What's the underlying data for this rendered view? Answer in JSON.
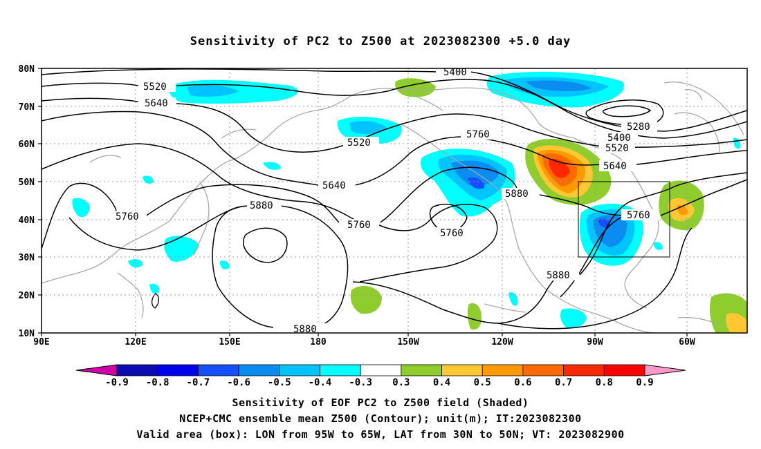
{
  "title": "Sensitivity of PC2 to Z500 at 2023082300 +5.0 day",
  "lat_labels": [
    "80N",
    "70N",
    "60N",
    "50N",
    "40N",
    "30N",
    "20N",
    "10N"
  ],
  "lon_labels": [
    "90E",
    "120E",
    "150E",
    "180",
    "150W",
    "120W",
    "90W",
    "60W"
  ],
  "contour_labels": [
    "5400",
    "5520",
    "5640",
    "5520",
    "5760",
    "5280",
    "5400",
    "5520",
    "5640",
    "5640",
    "5880",
    "5880",
    "5760",
    "5760",
    "5760",
    "5760",
    "5880",
    "5880"
  ],
  "colorbar": {
    "labels": [
      "-0.9",
      "-0.8",
      "-0.7",
      "-0.6",
      "-0.5",
      "-0.4",
      "-0.3",
      "0.3",
      "0.4",
      "0.5",
      "0.6",
      "0.7",
      "0.8",
      "0.9"
    ],
    "colors": [
      "#0b0bb0",
      "#0000f0",
      "#1450ff",
      "#0a8cf0",
      "#00c4ff",
      "#00ffff",
      "#ffffff",
      "#8fcc2e",
      "#ffc832",
      "#ff9900",
      "#ff6a00",
      "#ff2800",
      "#ff0000"
    ],
    "low_extend_color": "#d000a8",
    "high_extend_color": "#ff99cc"
  },
  "valid_box": {
    "lon_range": "95W to 65W",
    "lat_range": "30N to 50N"
  },
  "captions": [
    "Sensitivity of EOF PC2 to Z500 field (Shaded)",
    "NCEP+CMC ensemble mean Z500 (Contour); unit(m); IT:2023082300",
    "Valid area (box): LON from 95W to 65W, LAT from 30N to 50N; VT: 2023082900"
  ]
}
